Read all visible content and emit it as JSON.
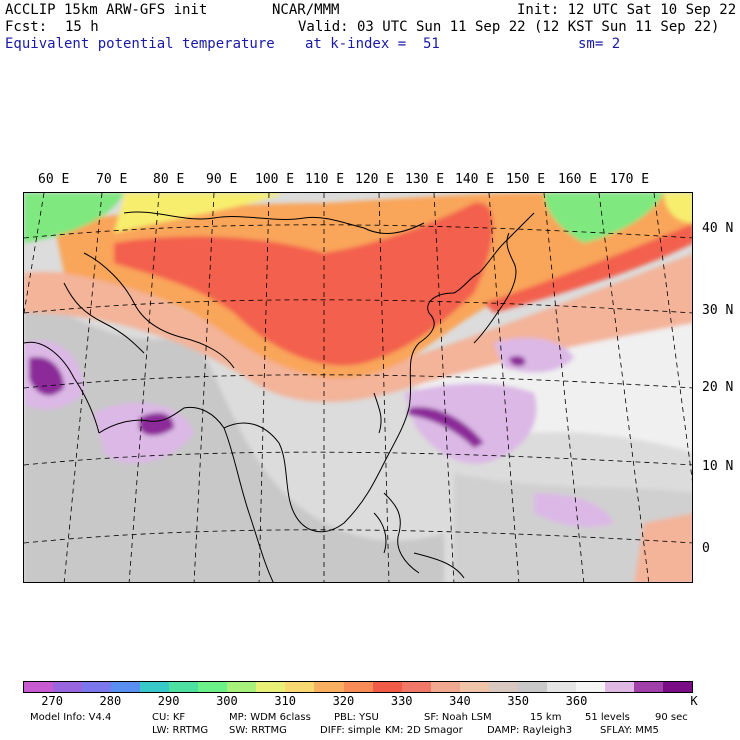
{
  "header": {
    "left_line1": "ACCLIP 15km ARW-GFS init",
    "left_line2_label": "Fcst:",
    "left_line2_value": "15 h",
    "center_line1": "NCAR/MMM",
    "right_line1": "Init: 12 UTC Sat 10 Sep 22",
    "valid_line": "Valid: 03 UTC Sun 11 Sep 22 (12 KST Sun 11 Sep 22)",
    "field_name": "Equivalent potential temperature",
    "level_text": "at k-index =  51",
    "smooth_text": "sm= 2"
  },
  "map": {
    "lon_labels": [
      "60 E",
      "70 E",
      "80 E",
      "90 E",
      "100 E",
      "110 E",
      "120 E",
      "130 E",
      "140 E",
      "150 E",
      "160 E",
      "170 E"
    ],
    "lat_labels": [
      "40 N",
      "30 N",
      "20 N",
      "10 N",
      "0"
    ],
    "field_colors": {
      "green": "#7fe87f",
      "yellowgreen": "#b8f07a",
      "yellow": "#f7ee6e",
      "orange": "#f9a55a",
      "red": "#f3604e",
      "salmon": "#f3b49a",
      "gray": "#c8c8c8",
      "lightgray": "#dcdcdc",
      "white": "#f2f2f2",
      "lavender": "#dcb8e6",
      "purple": "#8c2a9a"
    }
  },
  "colorbar": {
    "colors": [
      "#c85bd2",
      "#9a66e0",
      "#7b77ec",
      "#5a8ef0",
      "#39c8c8",
      "#4ee0a0",
      "#6cf088",
      "#a8f07c",
      "#e8f078",
      "#f8d870",
      "#f8b060",
      "#f88c58",
      "#f05c48",
      "#f07868",
      "#f0a890",
      "#f0c4a8",
      "#d8c8c0",
      "#c8c8c8",
      "#e4e4e4",
      "#f4f4f4",
      "#e0b8e4",
      "#a040a8",
      "#7a0c86"
    ],
    "ticks": [
      "270",
      "280",
      "290",
      "300",
      "310",
      "320",
      "330",
      "340",
      "350",
      "360"
    ],
    "unit": "K"
  },
  "footer": {
    "line1": [
      "Model Info: V4.4",
      "CU: KF",
      "MP: WDM 6class",
      "PBL: YSU",
      "SF: Noah LSM",
      "15 km",
      "51 levels",
      "90 sec"
    ],
    "line2": [
      "LW: RRTMG",
      "SW: RRTMG",
      "DIFF: simple",
      "KM: 2D Smagor",
      "DAMP: Rayleigh3",
      "SFLAY: MM5"
    ]
  }
}
